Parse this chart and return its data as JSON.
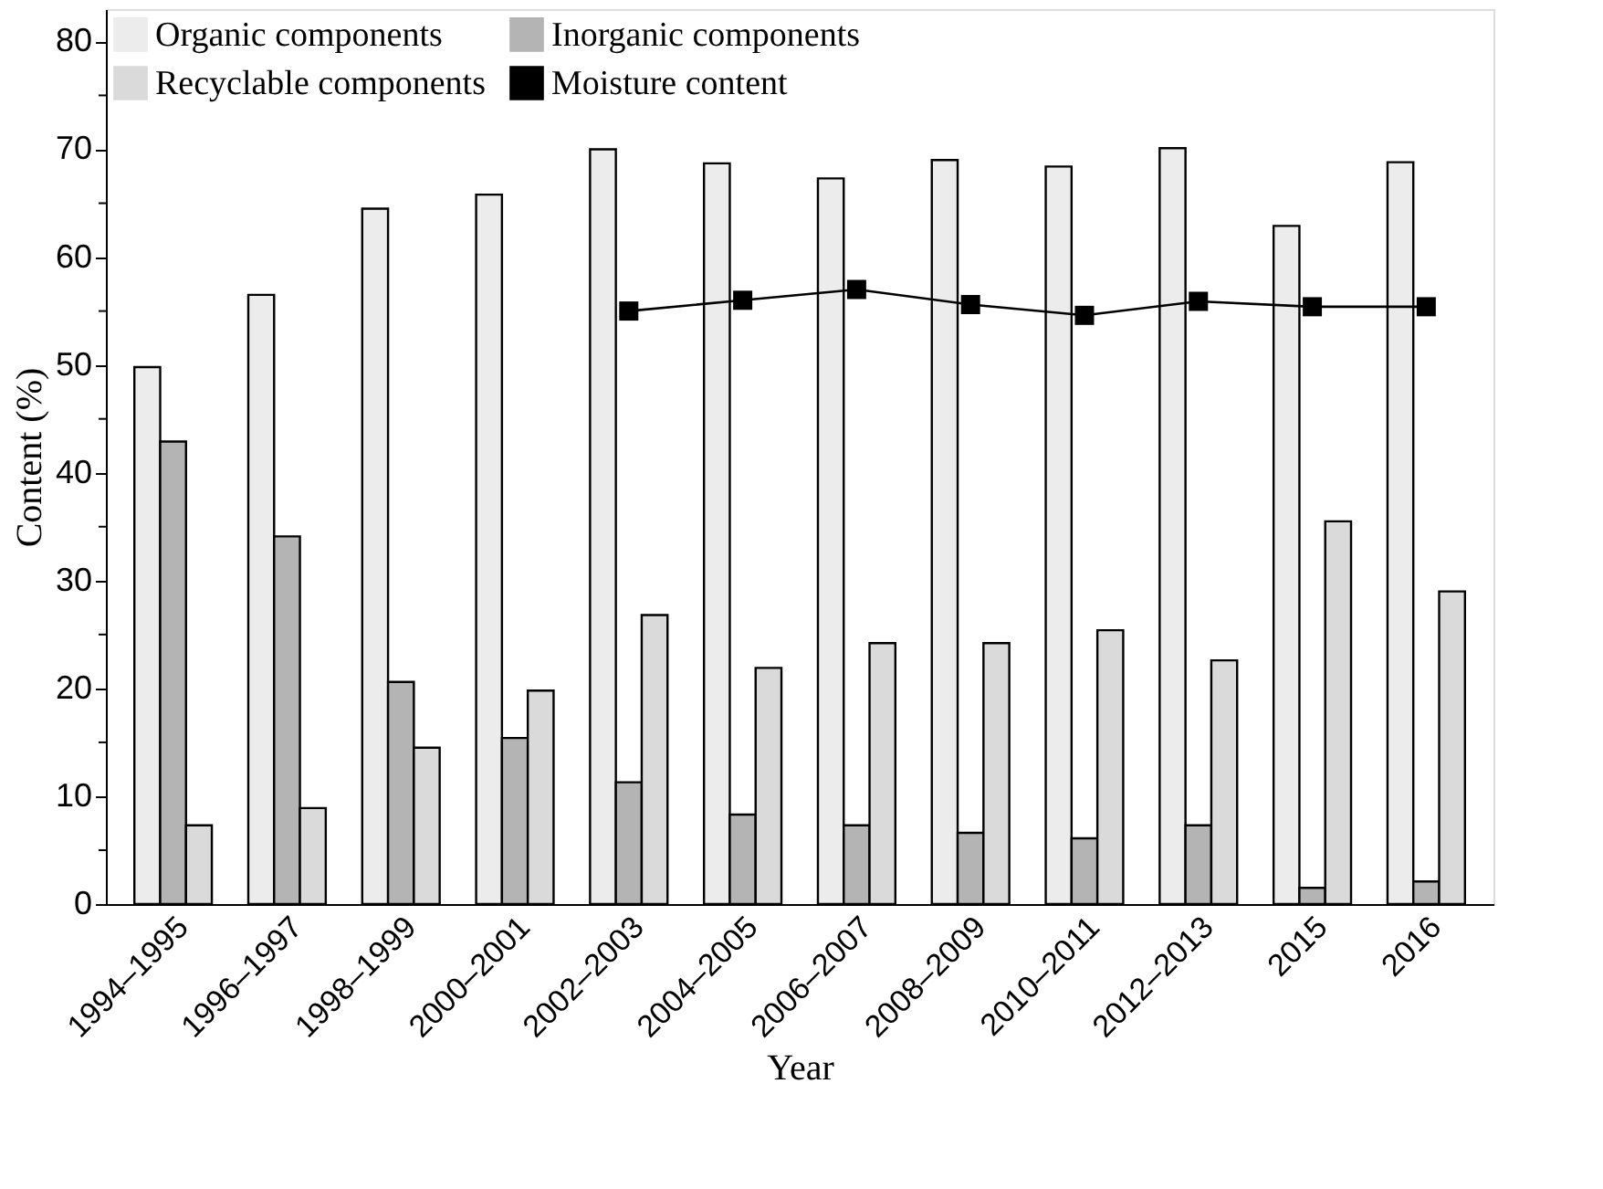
{
  "chart_data": {
    "type": "bar",
    "xlabel": "Year",
    "ylabel": "Content (%)",
    "categories": [
      "1994–1995",
      "1996–1997",
      "1998–1999",
      "2000–2001",
      "2002–2003",
      "2004–2005",
      "2006–2007",
      "2008–2009",
      "2010–2011",
      "2012–2013",
      "2015",
      "2016"
    ],
    "series": [
      {
        "name": "Organic components",
        "color": "#ececec",
        "values": [
          49.8,
          56.5,
          64.5,
          65.8,
          70.0,
          68.7,
          67.3,
          69.0,
          68.4,
          70.1,
          62.9,
          68.8
        ]
      },
      {
        "name": "Inorganic components",
        "color": "#b4b4b4",
        "values": [
          42.9,
          34.1,
          20.6,
          15.4,
          11.3,
          8.3,
          7.3,
          6.6,
          6.1,
          7.3,
          1.5,
          2.1
        ]
      },
      {
        "name": "Recyclable components",
        "color": "#dadada",
        "values": [
          7.3,
          8.9,
          14.5,
          19.8,
          26.8,
          21.9,
          24.2,
          24.2,
          25.4,
          22.6,
          35.5,
          29.0
        ]
      },
      {
        "name": "Moisture content",
        "type": "line",
        "color": "#000000",
        "marker": "square",
        "line_style": "solid",
        "values": [
          null,
          null,
          null,
          null,
          55.0,
          56.0,
          57.0,
          55.6,
          54.6,
          55.9,
          55.4,
          55.4
        ]
      }
    ],
    "ylim": [
      0,
      83
    ],
    "yticks": [
      0,
      {
        "value": 5,
        "label": null
      },
      10,
      {
        "value": 15,
        "label": null
      },
      20,
      {
        "value": 25,
        "label": null
      },
      30,
      {
        "value": 35,
        "label": null
      },
      40,
      {
        "value": 45,
        "label": null
      },
      50,
      {
        "value": 55,
        "label": null
      },
      60,
      {
        "value": 65,
        "label": null
      },
      70,
      {
        "value": 75,
        "label": null
      },
      80
    ],
    "grid": false,
    "legend": "top left"
  }
}
